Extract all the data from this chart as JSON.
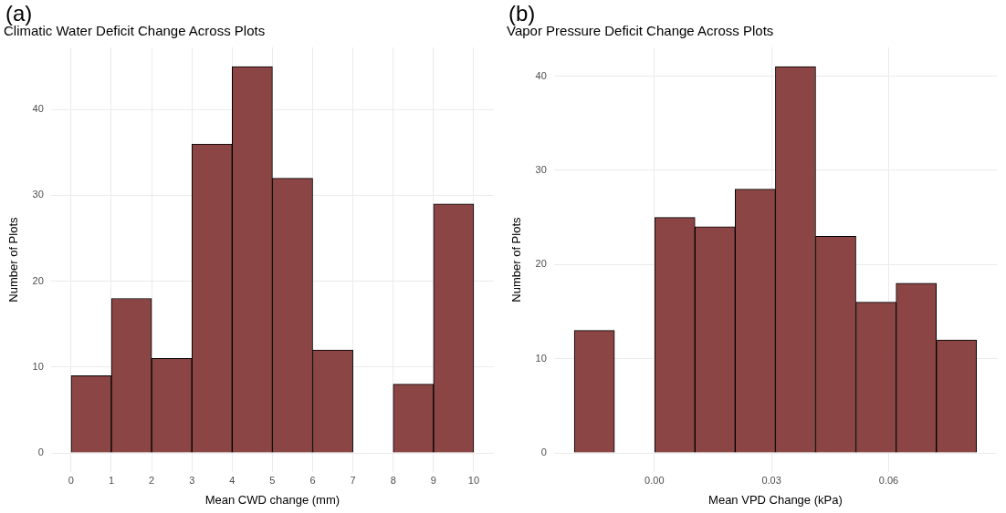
{
  "chart_data": [
    {
      "type": "histogram",
      "title": "Climatic Water Deficit Change Across Plots",
      "annotations": [
        "(a)"
      ],
      "xlabel": "Mean CWD change (mm)",
      "ylabel": "Number of Plots",
      "bins": [
        0,
        1,
        2,
        3,
        4,
        5,
        6,
        7,
        8,
        9,
        10
      ],
      "values": [
        9,
        18,
        11,
        36,
        45,
        32,
        12,
        0,
        8,
        29
      ],
      "color": "#8b4545",
      "xlim": [
        -0.5,
        10.5
      ],
      "xticks": [
        0,
        1,
        2,
        3,
        4,
        5,
        6,
        7,
        8,
        9,
        10
      ],
      "ylim": [
        -2.25,
        47.25
      ],
      "yticks": [
        0,
        10,
        20,
        30,
        40
      ],
      "grid": true,
      "legend": false
    },
    {
      "type": "histogram",
      "title": "Vapor Pressure Deficit Change Across Plots",
      "annotations": [
        "(b)"
      ],
      "xlabel": "Mean VPD Change (kPa)",
      "ylabel": "Number of Plots",
      "bins": [
        -0.0205,
        -0.0102,
        0.0001,
        0.0104,
        0.0207,
        0.031,
        0.0413,
        0.0516,
        0.0619,
        0.0722,
        0.0825
      ],
      "values": [
        13,
        0,
        25,
        24,
        28,
        41,
        23,
        16,
        18,
        12
      ],
      "color": "#8b4545",
      "xlim": [
        -0.0257,
        0.0877
      ],
      "xticks": [
        {
          "value": 0,
          "label": "0.00"
        },
        {
          "value": 0.03,
          "label": "0.03"
        },
        {
          "value": 0.06,
          "label": "0.06"
        }
      ],
      "ylim": [
        -2.05,
        43.05
      ],
      "yticks": [
        0,
        10,
        20,
        30,
        40
      ],
      "grid": true,
      "legend": false
    }
  ]
}
